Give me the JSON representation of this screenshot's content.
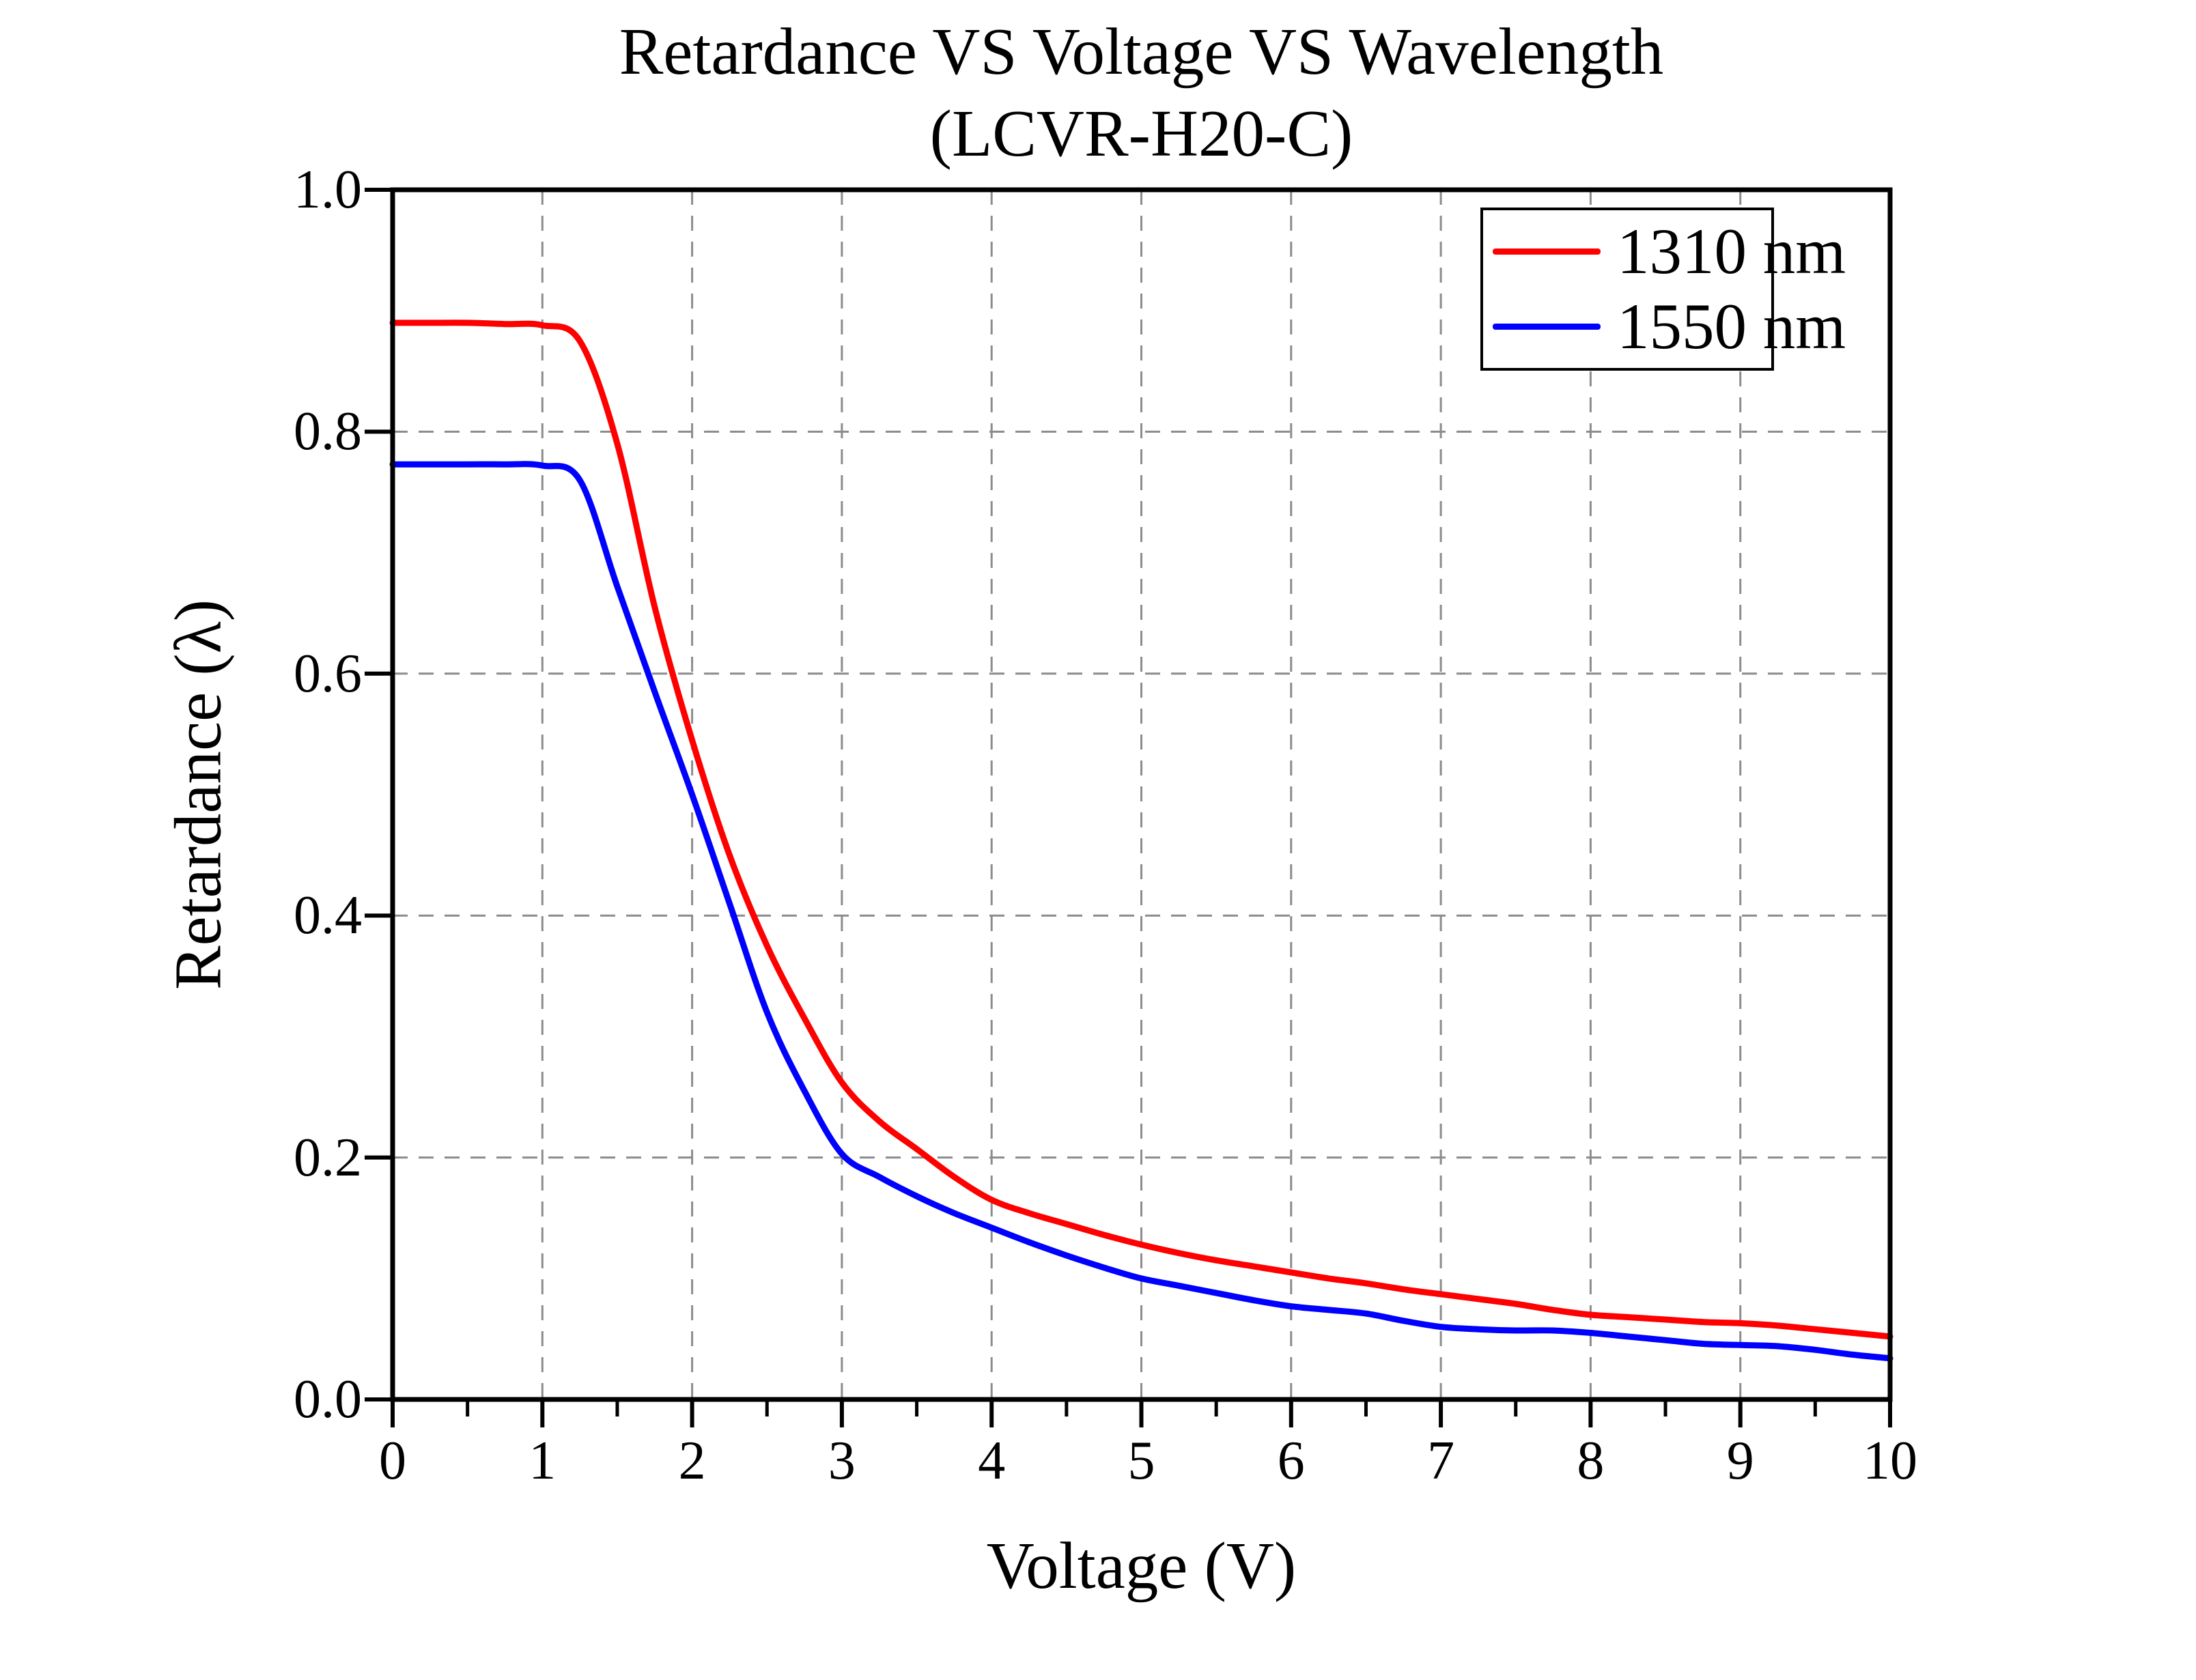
{
  "title": {
    "line1": "Retardance VS Voltage VS Wavelength",
    "line2": "(LCVR-H20-C)"
  },
  "axes": {
    "x": {
      "title": "Voltage (V)",
      "min": 0,
      "max": 10,
      "tick_labels": [
        "0",
        "1",
        "2",
        "3",
        "4",
        "5",
        "6",
        "7",
        "8",
        "9",
        "10"
      ],
      "minor_tick_step": 0.5
    },
    "y": {
      "title": "Retardance (λ)",
      "min": 0.0,
      "max": 1.0,
      "tick_labels": [
        "0.0",
        "0.2",
        "0.4",
        "0.6",
        "0.8",
        "1.0"
      ]
    }
  },
  "colors": {
    "series_1310": "#ff0000",
    "series_1550": "#0000ff",
    "grid": "#8c8c8c",
    "axis": "#000000",
    "background": "#ffffff",
    "text": "#000000"
  },
  "legend": {
    "position": "top-right",
    "border_color": "#000000"
  },
  "chart_data": {
    "type": "line",
    "title": "Retardance VS Voltage VS Wavelength (LCVR-H20-C)",
    "xlabel": "Voltage (V)",
    "ylabel": "Retardance (λ)",
    "xlim": [
      0,
      10
    ],
    "ylim": [
      0.0,
      1.0
    ],
    "x_major_ticks": [
      0,
      1,
      2,
      3,
      4,
      5,
      6,
      7,
      8,
      9,
      10
    ],
    "y_major_ticks": [
      0.0,
      0.2,
      0.4,
      0.6,
      0.8,
      1.0
    ],
    "grid": "dashed",
    "legend_position": "top-right",
    "x": [
      0,
      0.25,
      0.5,
      0.75,
      1,
      1.25,
      1.5,
      1.75,
      2,
      2.25,
      2.5,
      2.75,
      3,
      3.25,
      3.5,
      3.75,
      4,
      4.25,
      4.5,
      4.75,
      5,
      5.25,
      5.5,
      5.75,
      6,
      6.25,
      6.5,
      6.75,
      7,
      7.25,
      7.5,
      7.75,
      8,
      8.25,
      8.5,
      8.75,
      9,
      9.25,
      9.5,
      9.75,
      10
    ],
    "series": [
      {
        "name": "1310 nm",
        "color": "#ff0000",
        "values": [
          0.89,
          0.89,
          0.89,
          0.889,
          0.888,
          0.875,
          0.79,
          0.655,
          0.545,
          0.45,
          0.375,
          0.315,
          0.262,
          0.23,
          0.207,
          0.184,
          0.165,
          0.154,
          0.145,
          0.136,
          0.128,
          0.121,
          0.115,
          0.11,
          0.105,
          0.1,
          0.096,
          0.091,
          0.087,
          0.083,
          0.079,
          0.074,
          0.07,
          0.068,
          0.066,
          0.064,
          0.063,
          0.061,
          0.058,
          0.055,
          0.052
        ]
      },
      {
        "name": "1550 nm",
        "color": "#0000ff",
        "values": [
          0.773,
          0.773,
          0.773,
          0.773,
          0.772,
          0.76,
          0.672,
          0.585,
          0.5,
          0.41,
          0.32,
          0.255,
          0.203,
          0.184,
          0.168,
          0.154,
          0.142,
          0.13,
          0.119,
          0.109,
          0.1,
          0.094,
          0.088,
          0.082,
          0.077,
          0.074,
          0.071,
          0.065,
          0.06,
          0.058,
          0.057,
          0.057,
          0.055,
          0.052,
          0.049,
          0.046,
          0.045,
          0.044,
          0.041,
          0.037,
          0.034
        ]
      }
    ]
  }
}
